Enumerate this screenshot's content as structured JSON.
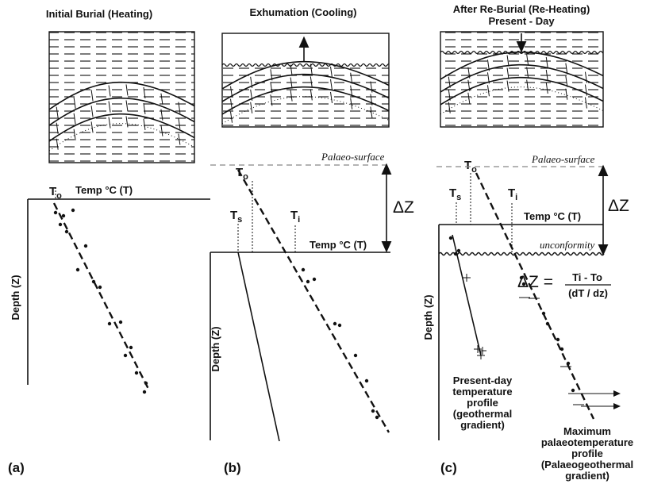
{
  "panels": [
    {
      "title": [
        "Initial Burial (Heating)"
      ],
      "t_o": {
        "symbol": "T",
        "sub": "o"
      },
      "temp_axis": "Temp °C (T)",
      "depth_axis": "Depth (Z)",
      "label": "(a)"
    },
    {
      "title": [
        "Exhumation (Cooling)"
      ],
      "palaeo_surface": "Palaeo-surface",
      "t_o": {
        "symbol": "T",
        "sub": "o"
      },
      "t_s": {
        "symbol": "T",
        "sub": "s"
      },
      "t_i": {
        "symbol": "T",
        "sub": "i"
      },
      "delta_z": "ΔZ",
      "temp_axis": "Temp °C (T)",
      "depth_axis": "Depth (Z)",
      "label": "(b)"
    },
    {
      "title": [
        "After Re-Burial (Re-Heating)",
        "Present - Day"
      ],
      "palaeo_surface": "Palaeo-surface",
      "t_o": {
        "symbol": "T",
        "sub": "o"
      },
      "t_s": {
        "symbol": "T",
        "sub": "s"
      },
      "t_i": {
        "symbol": "T",
        "sub": "i"
      },
      "delta_z": "ΔZ",
      "temp_axis": "Temp °C (T)",
      "unconformity": "unconformity",
      "depth_axis": "Depth (Z)",
      "equation": {
        "lhs": "ΔZ =",
        "numerator": "Ti - To",
        "denominator": "(dT / dz)"
      },
      "present_day_label": [
        "Present-day",
        "temperature",
        "profile",
        "(geothermal",
        "gradient)"
      ],
      "max_palaeo_label": [
        "Maximum",
        "palaeotemperature",
        "profile",
        "(Palaeogeothermal",
        "gradient)"
      ],
      "label": "(c)"
    }
  ]
}
